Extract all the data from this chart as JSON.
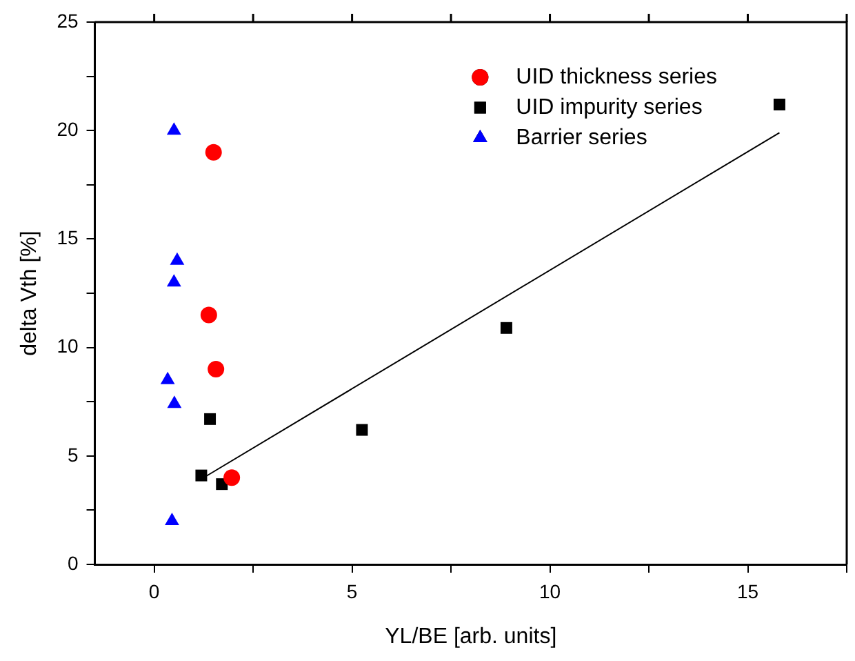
{
  "chart_data": {
    "type": "scatter",
    "xlabel": "YL/BE [arb. units]",
    "ylabel": "delta Vth [%]",
    "xlim": [
      -1.5,
      17.5
    ],
    "xticks": [
      0,
      {
        "value": 2.5,
        "label": null
      },
      5,
      {
        "value": 7.5,
        "label": null
      },
      10,
      {
        "value": 12.5,
        "label": null
      },
      15,
      {
        "value": 17.5,
        "label": null
      }
    ],
    "ylim": [
      0,
      25
    ],
    "yticks": [
      0,
      {
        "value": 2.5,
        "label": null
      },
      5,
      {
        "value": 7.5,
        "label": null
      },
      10,
      {
        "value": 12.5,
        "label": null
      },
      15,
      {
        "value": 17.5,
        "label": null
      },
      20,
      {
        "value": 22.5,
        "label": null
      },
      25
    ],
    "grid": false,
    "legend": "top right",
    "series": [
      {
        "name": "UID thickness series",
        "color": "#ff0000",
        "marker": "circle",
        "x": [
          1.5,
          1.38,
          1.56,
          1.96
        ],
        "values": [
          19.0,
          11.5,
          9.0,
          4.0
        ]
      },
      {
        "name": "UID impurity series",
        "color": "#000000",
        "marker": "square",
        "x": [
          15.8,
          8.9,
          5.25,
          1.41,
          1.19,
          1.71
        ],
        "values": [
          21.2,
          10.9,
          6.2,
          6.7,
          4.1,
          3.7
        ]
      },
      {
        "name": "Barrier series",
        "color": "#0000ff",
        "marker": "triangle",
        "x": [
          0.5,
          0.58,
          0.5,
          0.34,
          0.51,
          0.45
        ],
        "values": [
          20.0,
          14.0,
          13.0,
          8.5,
          7.4,
          2.0
        ]
      },
      {
        "type": "line",
        "color": "#000000",
        "marker": "none",
        "x": [
          1.25,
          15.8
        ],
        "values": [
          4.0,
          19.9
        ]
      }
    ]
  }
}
